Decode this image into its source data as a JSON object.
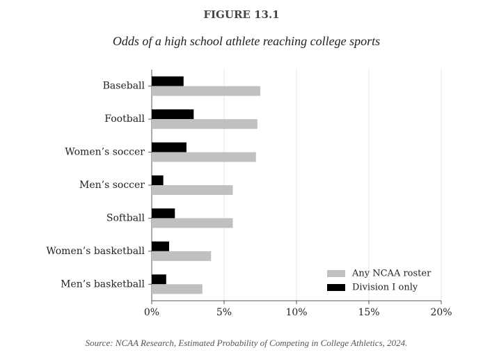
{
  "chart_data": {
    "type": "barh",
    "title": "FIGURE 13.1",
    "subtitle": "Odds of a high school athlete reaching college sports",
    "source": "Source: NCAA Research, Estimated Probability of Competing in College Athletics, 2024.",
    "categories": [
      "Baseball",
      "Football",
      "Women’s soccer",
      "Men’s soccer",
      "Softball",
      "Women’s basketball",
      "Men’s basketball"
    ],
    "series": [
      {
        "name": "Any NCAA roster",
        "color": "#c0c0c0",
        "values": [
          7.5,
          7.3,
          7.2,
          5.6,
          5.6,
          4.1,
          3.5
        ]
      },
      {
        "name": "Division I only",
        "color": "#000000",
        "values": [
          2.2,
          2.9,
          2.4,
          0.8,
          1.6,
          1.2,
          1.0
        ]
      }
    ],
    "xlim": [
      0,
      20
    ],
    "xticks": [
      {
        "value": 0,
        "label": "0%"
      },
      {
        "value": 5,
        "label": "5%"
      },
      {
        "value": 10,
        "label": "10%"
      },
      {
        "value": 15,
        "label": "15%"
      },
      {
        "value": 20,
        "label": "20%"
      }
    ],
    "grid": true,
    "legend": "lower right"
  }
}
